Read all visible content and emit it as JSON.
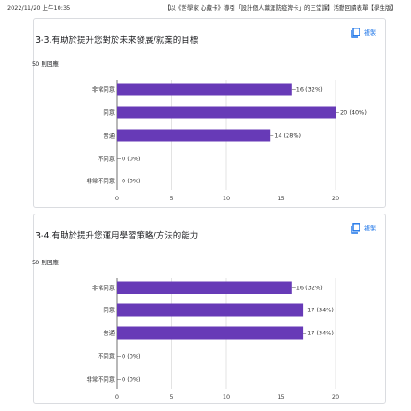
{
  "header": {
    "datetime": "2022/11/20 上午10:35",
    "doc_title": "【以《哲學家 心藏卡》導引「設計個人職涯防疫牌卡」的三堂課】活動回饋表單【學生版】"
  },
  "questions": [
    {
      "title": "3-3.有助於提升您對於未來發展/就業的目標",
      "count": "50 則回應",
      "copy_label": "複製",
      "copy_icon": "copy-icon"
    },
    {
      "title": "3-4.有助於提升您運用學習策略/方法的能力",
      "count": "50 則回應",
      "copy_label": "複製",
      "copy_icon": "copy-icon"
    }
  ],
  "chart_data": [
    {
      "type": "bar",
      "orientation": "horizontal",
      "categories": [
        "非常同意",
        "同意",
        "普通",
        "不同意",
        "非常不同意"
      ],
      "values": [
        16,
        20,
        14,
        0,
        0
      ],
      "data_labels": [
        "16 (32%)",
        "20 (40%)",
        "14 (28%)",
        "0 (0%)",
        "0 (0%)"
      ],
      "xlim": [
        0,
        20
      ],
      "xticks": [
        "0",
        "5",
        "10",
        "15",
        "20"
      ],
      "grid": true,
      "bar_color": "#673ab7"
    },
    {
      "type": "bar",
      "orientation": "horizontal",
      "categories": [
        "非常同意",
        "同意",
        "普通",
        "不同意",
        "非常不同意"
      ],
      "values": [
        16,
        17,
        17,
        0,
        0
      ],
      "data_labels": [
        "16 (32%)",
        "17 (34%)",
        "17 (34%)",
        "0 (0%)",
        "0 (0%)"
      ],
      "xlim": [
        0,
        20
      ],
      "xticks": [
        "0",
        "5",
        "10",
        "15",
        "20"
      ],
      "grid": true,
      "bar_color": "#673ab7"
    }
  ]
}
